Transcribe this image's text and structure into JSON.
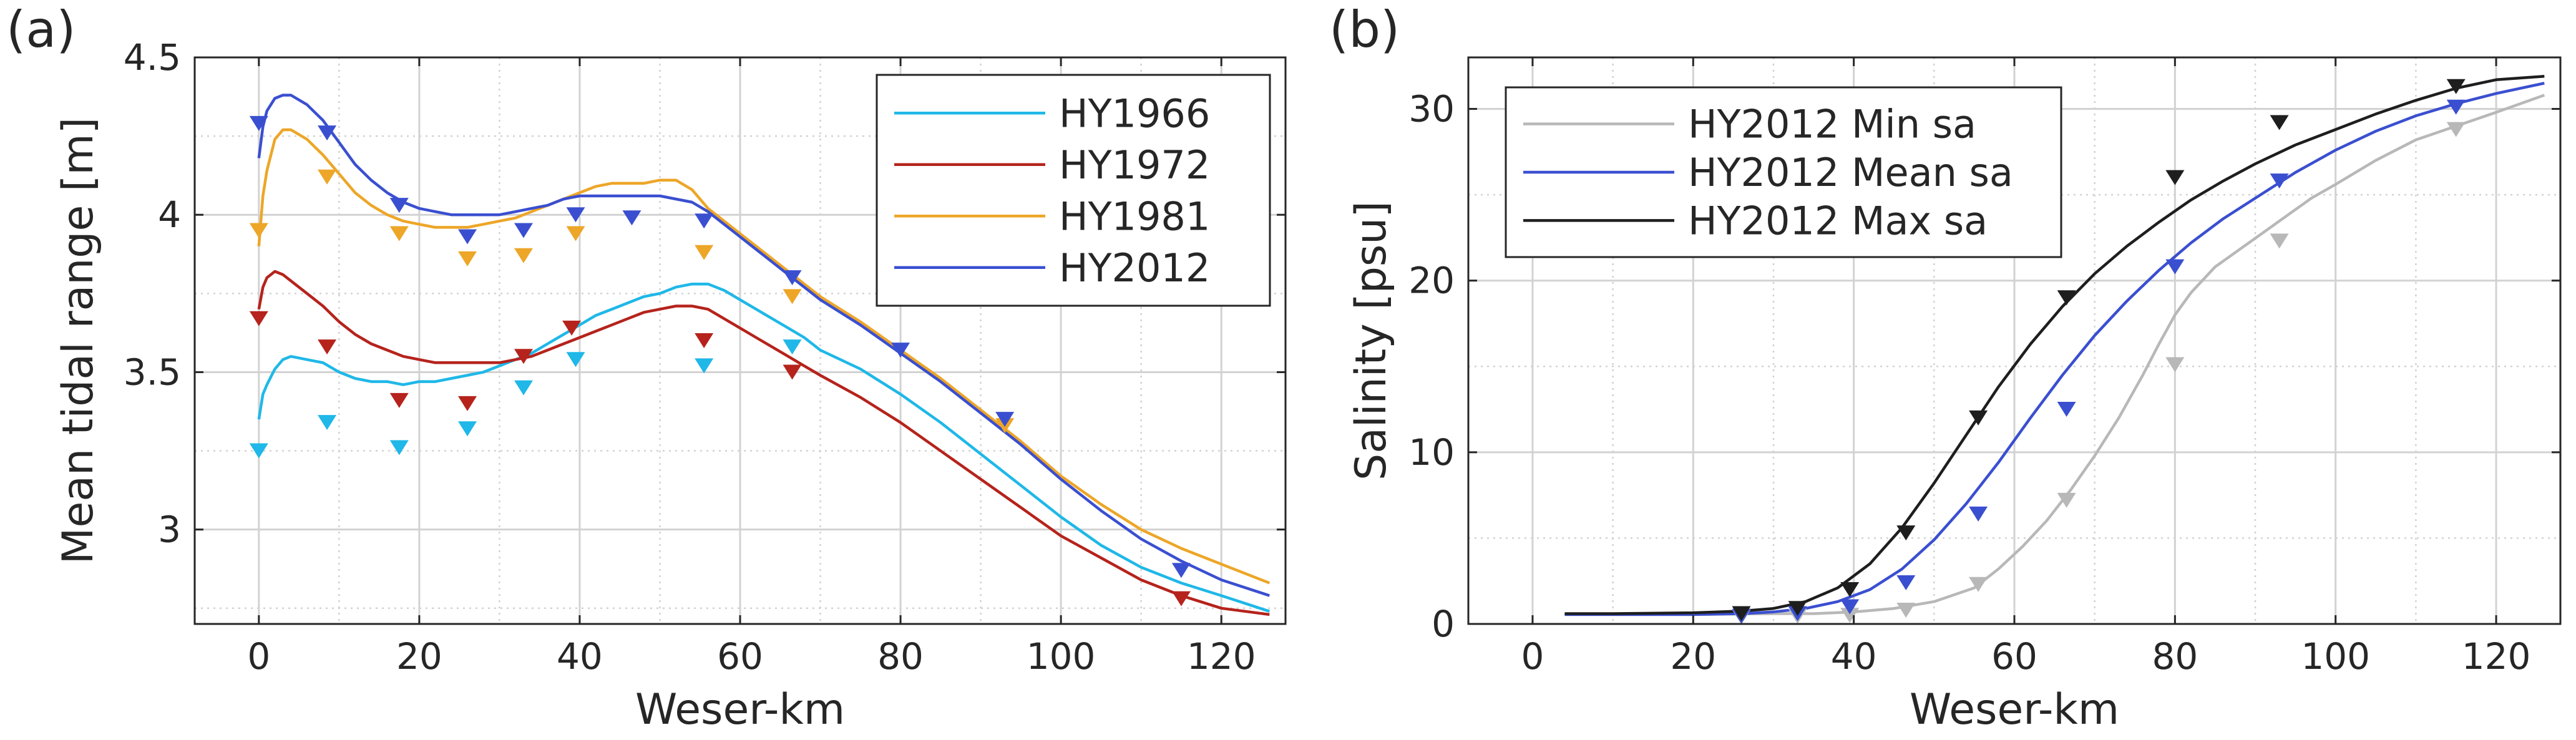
{
  "chart_data": [
    {
      "type": "line",
      "panel_label": "(a)",
      "title": "",
      "xlabel": "Weser-km",
      "ylabel": "Mean tidal range [m]",
      "xlim": [
        -8,
        128
      ],
      "ylim": [
        2.7,
        4.5
      ],
      "xticks": [
        0,
        20,
        40,
        60,
        80,
        100,
        120
      ],
      "yticks": [
        3,
        3.5,
        4,
        4.5
      ],
      "ytick_labels": [
        "3",
        "3.5",
        "4",
        "4.5"
      ],
      "grid": true,
      "legend_position": "top-right",
      "series": [
        {
          "name": "HY1966",
          "color": "#1fb8e8",
          "line_x": [
            0,
            0.5,
            1,
            2,
            3,
            4,
            6,
            8,
            10,
            12,
            14,
            16,
            18,
            20,
            22,
            24,
            26,
            28,
            30,
            32,
            34,
            36,
            38,
            40,
            42,
            44,
            46,
            48,
            50,
            52,
            54,
            56,
            58,
            60,
            62,
            64,
            66,
            68,
            70,
            75,
            80,
            85,
            90,
            95,
            100,
            105,
            110,
            115,
            120,
            126
          ],
          "line_y": [
            3.35,
            3.43,
            3.46,
            3.51,
            3.54,
            3.55,
            3.54,
            3.53,
            3.5,
            3.48,
            3.47,
            3.47,
            3.46,
            3.47,
            3.47,
            3.48,
            3.49,
            3.5,
            3.52,
            3.54,
            3.56,
            3.59,
            3.62,
            3.65,
            3.68,
            3.7,
            3.72,
            3.74,
            3.75,
            3.77,
            3.78,
            3.78,
            3.76,
            3.73,
            3.7,
            3.67,
            3.64,
            3.61,
            3.57,
            3.51,
            3.43,
            3.34,
            3.24,
            3.14,
            3.04,
            2.95,
            2.88,
            2.83,
            2.79,
            2.74
          ],
          "markers_x": [
            0,
            8.5,
            17.5,
            26,
            33,
            39.5,
            55.5,
            66.5
          ],
          "markers_y": [
            3.25,
            3.34,
            3.26,
            3.32,
            3.45,
            3.54,
            3.52,
            3.58
          ]
        },
        {
          "name": "HY1972",
          "color": "#b5231c",
          "line_x": [
            0,
            0.5,
            1,
            2,
            3,
            4,
            6,
            8,
            10,
            12,
            14,
            16,
            18,
            20,
            22,
            24,
            26,
            28,
            30,
            32,
            34,
            36,
            38,
            40,
            42,
            44,
            46,
            48,
            50,
            52,
            54,
            56,
            58,
            60,
            62,
            64,
            66,
            68,
            70,
            75,
            80,
            85,
            90,
            95,
            100,
            105,
            110,
            115,
            120,
            126
          ],
          "line_y": [
            3.7,
            3.77,
            3.8,
            3.82,
            3.81,
            3.79,
            3.75,
            3.71,
            3.66,
            3.62,
            3.59,
            3.57,
            3.55,
            3.54,
            3.53,
            3.53,
            3.53,
            3.53,
            3.53,
            3.54,
            3.55,
            3.57,
            3.59,
            3.61,
            3.63,
            3.65,
            3.67,
            3.69,
            3.7,
            3.71,
            3.71,
            3.7,
            3.67,
            3.64,
            3.61,
            3.58,
            3.55,
            3.52,
            3.49,
            3.42,
            3.34,
            3.25,
            3.16,
            3.07,
            2.98,
            2.91,
            2.84,
            2.79,
            2.75,
            2.73
          ],
          "markers_x": [
            0,
            8.5,
            17.5,
            26,
            33,
            39,
            55.5,
            66.5,
            115
          ],
          "markers_y": [
            3.67,
            3.58,
            3.41,
            3.4,
            3.55,
            3.64,
            3.6,
            3.5,
            2.78
          ]
        },
        {
          "name": "HY1981",
          "color": "#eda628",
          "line_x": [
            0,
            0.5,
            1,
            2,
            3,
            4,
            6,
            8,
            10,
            12,
            14,
            16,
            18,
            20,
            22,
            24,
            26,
            28,
            30,
            32,
            34,
            36,
            38,
            40,
            42,
            44,
            46,
            48,
            50,
            52,
            54,
            56,
            58,
            60,
            62,
            64,
            66,
            68,
            70,
            75,
            80,
            85,
            90,
            95,
            100,
            105,
            110,
            115,
            120,
            126
          ],
          "line_y": [
            3.9,
            4.06,
            4.14,
            4.24,
            4.27,
            4.27,
            4.24,
            4.19,
            4.13,
            4.07,
            4.03,
            4.0,
            3.98,
            3.97,
            3.96,
            3.96,
            3.96,
            3.97,
            3.98,
            3.99,
            4.01,
            4.03,
            4.05,
            4.07,
            4.09,
            4.1,
            4.1,
            4.1,
            4.11,
            4.11,
            4.08,
            4.02,
            3.98,
            3.94,
            3.9,
            3.86,
            3.82,
            3.78,
            3.74,
            3.66,
            3.57,
            3.48,
            3.38,
            3.28,
            3.17,
            3.08,
            3.0,
            2.94,
            2.89,
            2.83
          ],
          "markers_x": [
            0,
            8.5,
            17.5,
            26,
            33,
            39.5,
            55.5,
            66.5,
            93
          ],
          "markers_y": [
            3.95,
            4.12,
            3.94,
            3.86,
            3.87,
            3.94,
            3.88,
            3.74,
            3.33
          ]
        },
        {
          "name": "HY2012",
          "color": "#3a4fd0",
          "line_x": [
            0,
            0.5,
            1,
            2,
            3,
            4,
            6,
            8,
            10,
            12,
            14,
            16,
            18,
            20,
            22,
            24,
            26,
            28,
            30,
            32,
            34,
            36,
            38,
            40,
            42,
            44,
            46,
            48,
            50,
            52,
            54,
            56,
            58,
            60,
            62,
            64,
            66,
            68,
            70,
            75,
            80,
            85,
            90,
            95,
            100,
            105,
            110,
            115,
            120,
            126
          ],
          "line_y": [
            4.18,
            4.28,
            4.33,
            4.37,
            4.38,
            4.38,
            4.35,
            4.3,
            4.23,
            4.16,
            4.11,
            4.07,
            4.04,
            4.02,
            4.01,
            4.0,
            4.0,
            4.0,
            4.0,
            4.01,
            4.02,
            4.03,
            4.05,
            4.06,
            4.06,
            4.06,
            4.06,
            4.06,
            4.06,
            4.05,
            4.04,
            4.01,
            3.97,
            3.93,
            3.89,
            3.85,
            3.81,
            3.77,
            3.73,
            3.65,
            3.56,
            3.47,
            3.37,
            3.27,
            3.16,
            3.06,
            2.97,
            2.9,
            2.84,
            2.79
          ],
          "markers_x": [
            0,
            8.5,
            17.5,
            26,
            33,
            39.5,
            46.5,
            55.5,
            66.5,
            80,
            93,
            115
          ],
          "markers_y": [
            4.29,
            4.26,
            4.03,
            3.93,
            3.95,
            4.0,
            3.99,
            3.98,
            3.8,
            3.57,
            3.35,
            2.87
          ]
        }
      ]
    },
    {
      "type": "line",
      "panel_label": "(b)",
      "title": "",
      "xlabel": "Weser-km",
      "ylabel": "Salinity [psu]",
      "xlim": [
        -8,
        128
      ],
      "ylim": [
        0,
        33
      ],
      "xticks": [
        0,
        20,
        40,
        60,
        80,
        100,
        120
      ],
      "yticks": [
        0,
        10,
        20,
        30
      ],
      "ytick_labels": [
        "0",
        "10",
        "20",
        "30"
      ],
      "grid": true,
      "legend_position": "top-left",
      "series": [
        {
          "name": "HY2012 Min sa",
          "color": "#b8b8b8",
          "line_x": [
            4,
            10,
            20,
            30,
            35,
            40,
            45,
            50,
            55,
            58,
            61,
            64,
            67,
            70,
            73,
            76,
            78,
            80,
            82,
            85,
            88,
            91,
            94,
            97,
            100,
            105,
            110,
            115,
            120,
            126
          ],
          "line_y": [
            0.55,
            0.55,
            0.55,
            0.6,
            0.6,
            0.7,
            0.9,
            1.3,
            2.1,
            3.2,
            4.5,
            6.0,
            7.8,
            9.8,
            12.0,
            14.5,
            16.3,
            18.0,
            19.3,
            20.8,
            21.8,
            22.8,
            23.8,
            24.8,
            25.6,
            27.0,
            28.2,
            29.0,
            29.8,
            30.8
          ],
          "markers_x": [
            26,
            33,
            39.5,
            46.5,
            55.5,
            66.5,
            80,
            93,
            115
          ],
          "markers_y": [
            0.4,
            0.45,
            0.5,
            0.8,
            2.3,
            7.2,
            15.1,
            22.3,
            28.8
          ]
        },
        {
          "name": "HY2012 Mean sa",
          "color": "#3a4fd0",
          "line_x": [
            4,
            10,
            20,
            26,
            30,
            34,
            38,
            42,
            46,
            50,
            54,
            58,
            62,
            66,
            70,
            74,
            78,
            82,
            86,
            90,
            95,
            100,
            105,
            110,
            115,
            120,
            126
          ],
          "line_y": [
            0.55,
            0.55,
            0.55,
            0.6,
            0.7,
            0.9,
            1.3,
            2.0,
            3.2,
            4.9,
            7.0,
            9.4,
            12.0,
            14.5,
            16.8,
            18.8,
            20.6,
            22.2,
            23.6,
            24.8,
            26.3,
            27.6,
            28.7,
            29.6,
            30.3,
            30.9,
            31.5
          ],
          "markers_x": [
            26,
            33,
            39.5,
            46.5,
            55.5,
            66.5,
            80,
            93,
            115
          ],
          "markers_y": [
            0.45,
            0.6,
            1.0,
            2.4,
            6.4,
            12.5,
            20.8,
            25.8,
            30.1
          ]
        },
        {
          "name": "HY2012 Max sa",
          "color": "#1e1e1e",
          "line_x": [
            4,
            10,
            20,
            26,
            30,
            34,
            38,
            42,
            46,
            50,
            54,
            58,
            62,
            66,
            70,
            74,
            78,
            82,
            86,
            90,
            95,
            100,
            105,
            110,
            115,
            120,
            126
          ],
          "line_y": [
            0.6,
            0.6,
            0.65,
            0.75,
            0.9,
            1.3,
            2.1,
            3.5,
            5.6,
            8.2,
            11.0,
            13.8,
            16.3,
            18.5,
            20.4,
            22.0,
            23.4,
            24.7,
            25.8,
            26.8,
            27.9,
            28.8,
            29.7,
            30.5,
            31.2,
            31.7,
            31.9
          ],
          "markers_x": [
            26,
            33,
            39.5,
            46.5,
            55.5,
            66.5,
            80,
            93,
            115
          ],
          "markers_y": [
            0.6,
            0.9,
            2.0,
            5.3,
            12.0,
            19.0,
            26.0,
            29.2,
            31.3
          ]
        }
      ]
    }
  ]
}
